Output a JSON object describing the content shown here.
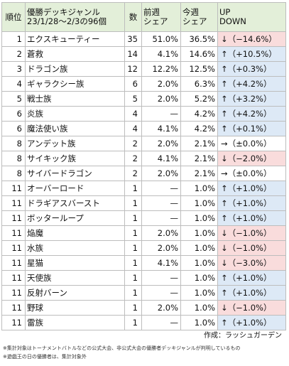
{
  "header": {
    "rank": "順位",
    "name_line1": "優勝デッキジャンル",
    "name_line2": "23/1/28〜2/3の96個",
    "count": "数",
    "prev_line1": "前週",
    "prev_line2": "シェア",
    "cur_line1": "今週",
    "cur_line2": "シェア",
    "trend_line1": "UP",
    "trend_line2": "DOWN"
  },
  "rows": [
    {
      "rank": "1",
      "name": "エクスキューティー",
      "count": "35",
      "prev": "51.0%",
      "cur": "36.5%",
      "trend": "↓（−14.6%）",
      "dir": "down"
    },
    {
      "rank": "2",
      "name": "蒼救",
      "count": "14",
      "prev": "4.1%",
      "cur": "14.6%",
      "trend": "↑（+10.5%）",
      "dir": "up"
    },
    {
      "rank": "3",
      "name": "ドラゴン族",
      "count": "12",
      "prev": "12.2%",
      "cur": "12.5%",
      "trend": "↑（+0.3%）",
      "dir": "up"
    },
    {
      "rank": "4",
      "name": "ギャラクシー族",
      "count": "6",
      "prev": "2.0%",
      "cur": "6.3%",
      "trend": "↑（+4.2%）",
      "dir": "up"
    },
    {
      "rank": "5",
      "name": "戦士族",
      "count": "5",
      "prev": "2.0%",
      "cur": "5.2%",
      "trend": "↑（+3.2%）",
      "dir": "up"
    },
    {
      "rank": "6",
      "name": "炎族",
      "count": "4",
      "prev": "—",
      "cur": "4.2%",
      "trend": "↑（+4.2%）",
      "dir": "up"
    },
    {
      "rank": "6",
      "name": "魔法使い族",
      "count": "4",
      "prev": "4.1%",
      "cur": "4.2%",
      "trend": "↑（+0.1%）",
      "dir": "up"
    },
    {
      "rank": "8",
      "name": "アンデット族",
      "count": "2",
      "prev": "2.0%",
      "cur": "2.1%",
      "trend": "→（±0.0%）",
      "dir": "flat"
    },
    {
      "rank": "8",
      "name": "サイキック族",
      "count": "2",
      "prev": "4.1%",
      "cur": "2.1%",
      "trend": "↓（−2.0%）",
      "dir": "down"
    },
    {
      "rank": "8",
      "name": "サイバードラゴン",
      "count": "2",
      "prev": "2.0%",
      "cur": "2.1%",
      "trend": "→（±0.0%）",
      "dir": "flat"
    },
    {
      "rank": "11",
      "name": "オーバーロード",
      "count": "1",
      "prev": "—",
      "cur": "1.0%",
      "trend": "↑（+1.0%）",
      "dir": "up"
    },
    {
      "rank": "11",
      "name": "ドラギアスバースト",
      "count": "1",
      "prev": "—",
      "cur": "1.0%",
      "trend": "↑（+1.0%）",
      "dir": "up"
    },
    {
      "rank": "11",
      "name": "ボッターループ",
      "count": "1",
      "prev": "—",
      "cur": "1.0%",
      "trend": "↑（+1.0%）",
      "dir": "up"
    },
    {
      "rank": "11",
      "name": "焔魔",
      "count": "1",
      "prev": "2.0%",
      "cur": "1.0%",
      "trend": "↓（−1.0%）",
      "dir": "down"
    },
    {
      "rank": "11",
      "name": "水族",
      "count": "1",
      "prev": "2.0%",
      "cur": "1.0%",
      "trend": "↓（−1.0%）",
      "dir": "down"
    },
    {
      "rank": "11",
      "name": "星猫",
      "count": "1",
      "prev": "4.1%",
      "cur": "1.0%",
      "trend": "↓（−3.0%）",
      "dir": "down"
    },
    {
      "rank": "11",
      "name": "天使族",
      "count": "1",
      "prev": "—",
      "cur": "1.0%",
      "trend": "↑（+1.0%）",
      "dir": "up"
    },
    {
      "rank": "11",
      "name": "反射バーン",
      "count": "1",
      "prev": "—",
      "cur": "1.0%",
      "trend": "↑（+1.0%）",
      "dir": "up"
    },
    {
      "rank": "11",
      "name": "野球",
      "count": "1",
      "prev": "2.0%",
      "cur": "1.0%",
      "trend": "↓（−1.0%）",
      "dir": "down"
    },
    {
      "rank": "11",
      "name": "雷族",
      "count": "1",
      "prev": "—",
      "cur": "1.0%",
      "trend": "↑（+1.0%）",
      "dir": "up"
    }
  ],
  "credit": "作成：ラッシュガーデン",
  "notes": [
    "※集計対象はトーナメントバトルなどの公式大会、非公式大会の優勝者デッキジャンルが判明しているもの",
    "※遊戯王の日の優勝者は、集計対象外"
  ],
  "colors": {
    "header_bg": "#e3efd9",
    "up_bg": "#dde9f6",
    "down_bg": "#f9dcdc",
    "border": "#bdbdbd"
  }
}
